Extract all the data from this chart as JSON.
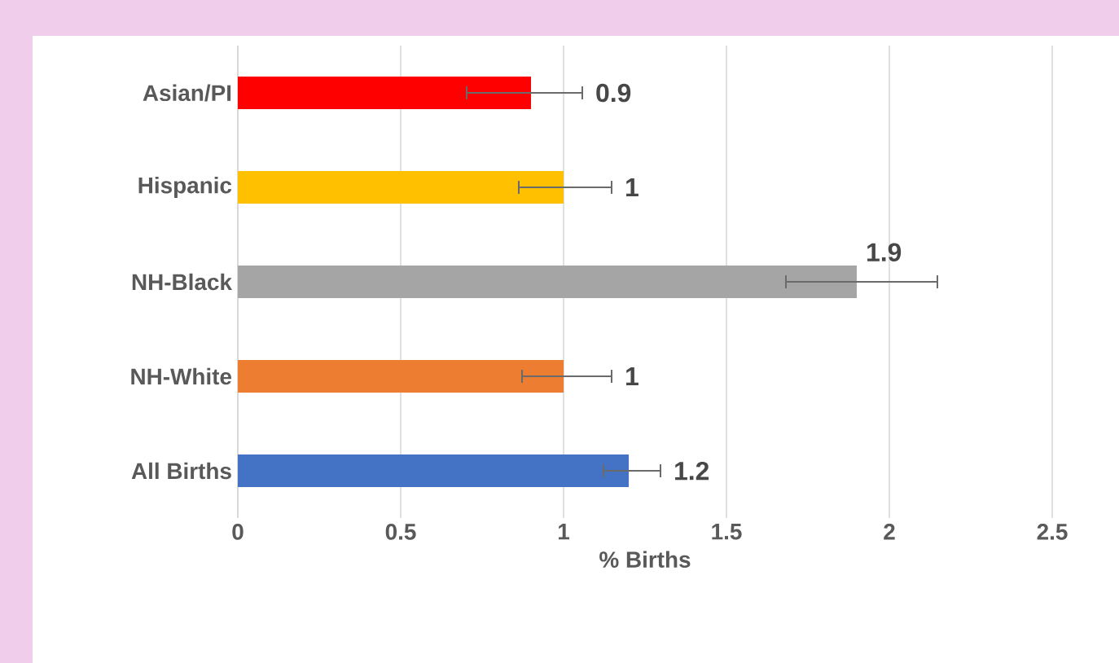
{
  "chart_data": {
    "type": "bar",
    "orientation": "horizontal",
    "xlabel": "% Births",
    "categories": [
      "Asian/PI",
      "Hispanic",
      "NH-Black",
      "NH-White",
      "All Births"
    ],
    "values": [
      0.9,
      1,
      1.9,
      1,
      1.2
    ],
    "colors": [
      "#ff0000",
      "#ffc000",
      "#a5a5a5",
      "#ed7d31",
      "#4472c4"
    ],
    "errors": [
      [
        0.7,
        1.06
      ],
      [
        0.86,
        1.15
      ],
      [
        1.68,
        2.15
      ],
      [
        0.87,
        1.15
      ],
      [
        1.12,
        1.3
      ]
    ],
    "xlim": [
      0,
      2.5
    ],
    "xticks": [
      0,
      0.5,
      1,
      1.5,
      2,
      2.5
    ],
    "grid": "x",
    "data_labels": true
  }
}
